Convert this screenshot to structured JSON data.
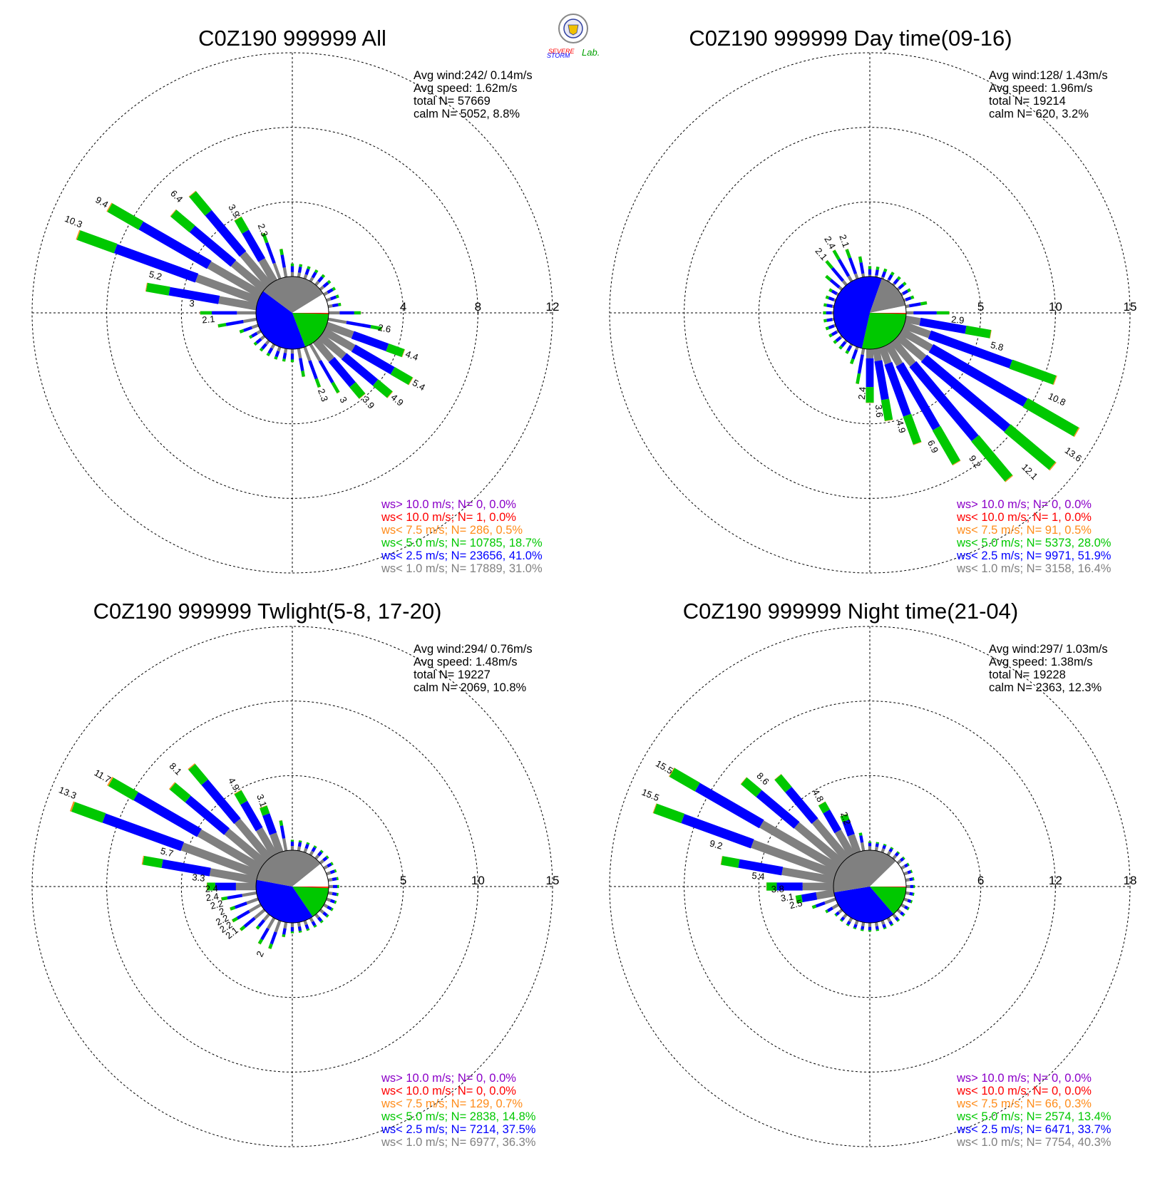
{
  "colors": {
    "over10": "#8b00c8",
    "lt10": "#ff0000",
    "lt7_5": "#ff8c1a",
    "lt5": "#00c800",
    "lt2_5": "#0000ff",
    "lt1": "#808080",
    "calm": "#ffffff"
  },
  "logo": {
    "name": "severe-storm-lab-logo",
    "text": "Severe Storm Lab."
  },
  "chart_data": [
    {
      "type": "wind-rose",
      "title": "C0Z190 999999 All",
      "stats": [
        "Avg wind:242/ 0.14m/s",
        "Avg speed: 1.62m/s",
        "total N=      57669",
        "calm N=   5052,   8.8%"
      ],
      "ring_labels": [
        "4",
        "8",
        "12"
      ],
      "rmax": 12,
      "bar_labels": [
        {
          "dir": 292.5,
          "value": 10.3
        },
        {
          "dir": 300,
          "value": 9.4
        },
        {
          "dir": 315,
          "value": 6.4
        },
        {
          "dir": 330,
          "value": 3.9
        },
        {
          "dir": 340,
          "value": 2.3
        },
        {
          "dir": 285,
          "value": 5.2
        },
        {
          "dir": 275,
          "value": 3.0
        },
        {
          "dir": 265,
          "value": 2.1
        },
        {
          "dir": 100,
          "value": 2.6
        },
        {
          "dir": 110,
          "value": 4.4
        },
        {
          "dir": 120,
          "value": 5.4
        },
        {
          "dir": 130,
          "value": 4.9
        },
        {
          "dir": 140,
          "value": 3.9
        },
        {
          "dir": 150,
          "value": 3.0
        },
        {
          "dir": 160,
          "value": 2.3
        }
      ],
      "legend": [
        {
          "text": "ws> 10.0 m/s; N=     0,  0.0%",
          "color": "over10"
        },
        {
          "text": "ws< 10.0 m/s; N=     1,  0.0%",
          "color": "lt10"
        },
        {
          "text": "ws<  7.5 m/s; N=   286,  0.5%",
          "color": "lt7_5"
        },
        {
          "text": "ws<  5.0 m/s; N= 10785, 18.7%",
          "color": "lt5"
        },
        {
          "text": "ws<  2.5 m/s; N= 23656, 41.0%",
          "color": "lt2_5"
        },
        {
          "text": "ws<  1.0 m/s; N= 17889, 31.0%",
          "color": "lt1"
        }
      ],
      "pie": [
        31.0,
        41.0,
        18.7,
        0.5,
        8.8
      ]
    },
    {
      "type": "wind-rose",
      "title": "C0Z190 999999 Day time(09-16)",
      "stats": [
        "Avg wind:128/ 1.43m/s",
        "Avg speed: 1.96m/s",
        "total N=      19214",
        "calm N=    620,   3.2%"
      ],
      "ring_labels": [
        "5",
        "10",
        "15"
      ],
      "rmax": 15,
      "bar_labels": [
        {
          "dir": 95,
          "value": 2.9
        },
        {
          "dir": 105,
          "value": 5.8
        },
        {
          "dir": 115,
          "value": 10.8
        },
        {
          "dir": 125,
          "value": 13.6
        },
        {
          "dir": 135,
          "value": 12.1
        },
        {
          "dir": 145,
          "value": 9.2
        },
        {
          "dir": 155,
          "value": 6.9
        },
        {
          "dir": 165,
          "value": 4.9
        },
        {
          "dir": 175,
          "value": 3.6
        },
        {
          "dir": 185,
          "value": 2.4
        },
        {
          "dir": 320,
          "value": 2.1
        },
        {
          "dir": 330,
          "value": 2.4
        },
        {
          "dir": 340,
          "value": 2.1
        }
      ],
      "legend": [
        {
          "text": "ws> 10.0 m/s; N=     0,  0.0%",
          "color": "over10"
        },
        {
          "text": "ws< 10.0 m/s; N=     1,  0.0%",
          "color": "lt10"
        },
        {
          "text": "ws<  7.5 m/s; N=    91,  0.5%",
          "color": "lt7_5"
        },
        {
          "text": "ws<  5.0 m/s; N=  5373, 28.0%",
          "color": "lt5"
        },
        {
          "text": "ws<  2.5 m/s; N=  9971, 51.9%",
          "color": "lt2_5"
        },
        {
          "text": "ws<  1.0 m/s; N=  3158, 16.4%",
          "color": "lt1"
        }
      ],
      "pie": [
        16.4,
        51.9,
        28.0,
        0.5,
        3.2
      ]
    },
    {
      "type": "wind-rose",
      "title": "C0Z190 999999 Twlight(5-8, 17-20)",
      "stats": [
        "Avg wind:294/ 0.76m/s",
        "Avg speed: 1.48m/s",
        "total N=      19227",
        "calm N=   2069,  10.8%"
      ],
      "ring_labels": [
        "5",
        "10",
        "15"
      ],
      "rmax": 15,
      "bar_labels": [
        {
          "dir": 292.5,
          "value": 13.3
        },
        {
          "dir": 300,
          "value": 11.7
        },
        {
          "dir": 315,
          "value": 8.1
        },
        {
          "dir": 330,
          "value": 4.9
        },
        {
          "dir": 340,
          "value": 3.1
        },
        {
          "dir": 285,
          "value": 5.7
        },
        {
          "dir": 275,
          "value": 3.3
        },
        {
          "dir": 268,
          "value": 2.4
        },
        {
          "dir": 262,
          "value": 2.4
        },
        {
          "dir": 256,
          "value": 2.2
        },
        {
          "dir": 250,
          "value": 2.0
        },
        {
          "dir": 244,
          "value": 2.2
        },
        {
          "dir": 238,
          "value": 2.2
        },
        {
          "dir": 232,
          "value": 2.1
        },
        {
          "dir": 205,
          "value": 2.0
        }
      ],
      "legend": [
        {
          "text": "ws> 10.0 m/s; N=     0,  0.0%",
          "color": "over10"
        },
        {
          "text": "ws< 10.0 m/s; N=     0,  0.0%",
          "color": "lt10"
        },
        {
          "text": "ws<  7.5 m/s; N=   129,  0.7%",
          "color": "lt7_5"
        },
        {
          "text": "ws<  5.0 m/s; N=  2838, 14.8%",
          "color": "lt5"
        },
        {
          "text": "ws<  2.5 m/s; N=  7214, 37.5%",
          "color": "lt2_5"
        },
        {
          "text": "ws<  1.0 m/s; N=  6977, 36.3%",
          "color": "lt1"
        }
      ],
      "pie": [
        36.3,
        37.5,
        14.8,
        0.7,
        10.8
      ]
    },
    {
      "type": "wind-rose",
      "title": "C0Z190 999999 Night time(21-04)",
      "stats": [
        "Avg wind:297/ 1.03m/s",
        "Avg speed: 1.38m/s",
        "total N=      19228",
        "calm N=   2363,  12.3%"
      ],
      "ring_labels": [
        "6",
        "12",
        "18"
      ],
      "rmax": 18,
      "bar_labels": [
        {
          "dir": 292.5,
          "value": 15.5
        },
        {
          "dir": 300,
          "value": 15.5
        },
        {
          "dir": 315,
          "value": 8.6
        },
        {
          "dir": 330,
          "value": 4.8
        },
        {
          "dir": 340,
          "value": 2.2
        },
        {
          "dir": 285,
          "value": 9.2
        },
        {
          "dir": 275,
          "value": 5.4
        },
        {
          "dir": 268,
          "value": 3.8
        },
        {
          "dir": 262,
          "value": 3.1
        },
        {
          "dir": 256,
          "value": 2.5
        }
      ],
      "legend": [
        {
          "text": "ws> 10.0 m/s; N=     0,  0.0%",
          "color": "over10"
        },
        {
          "text": "ws< 10.0 m/s; N=     0,  0.0%",
          "color": "lt10"
        },
        {
          "text": "ws<  7.5 m/s; N=    66,  0.3%",
          "color": "lt7_5"
        },
        {
          "text": "ws<  5.0 m/s; N=  2574, 13.4%",
          "color": "lt5"
        },
        {
          "text": "ws<  2.5 m/s; N=  6471, 33.7%",
          "color": "lt2_5"
        },
        {
          "text": "ws<  1.0 m/s; N=  7754, 40.3%",
          "color": "lt1"
        }
      ],
      "pie": [
        40.3,
        33.7,
        13.4,
        0.3,
        12.3
      ]
    }
  ]
}
